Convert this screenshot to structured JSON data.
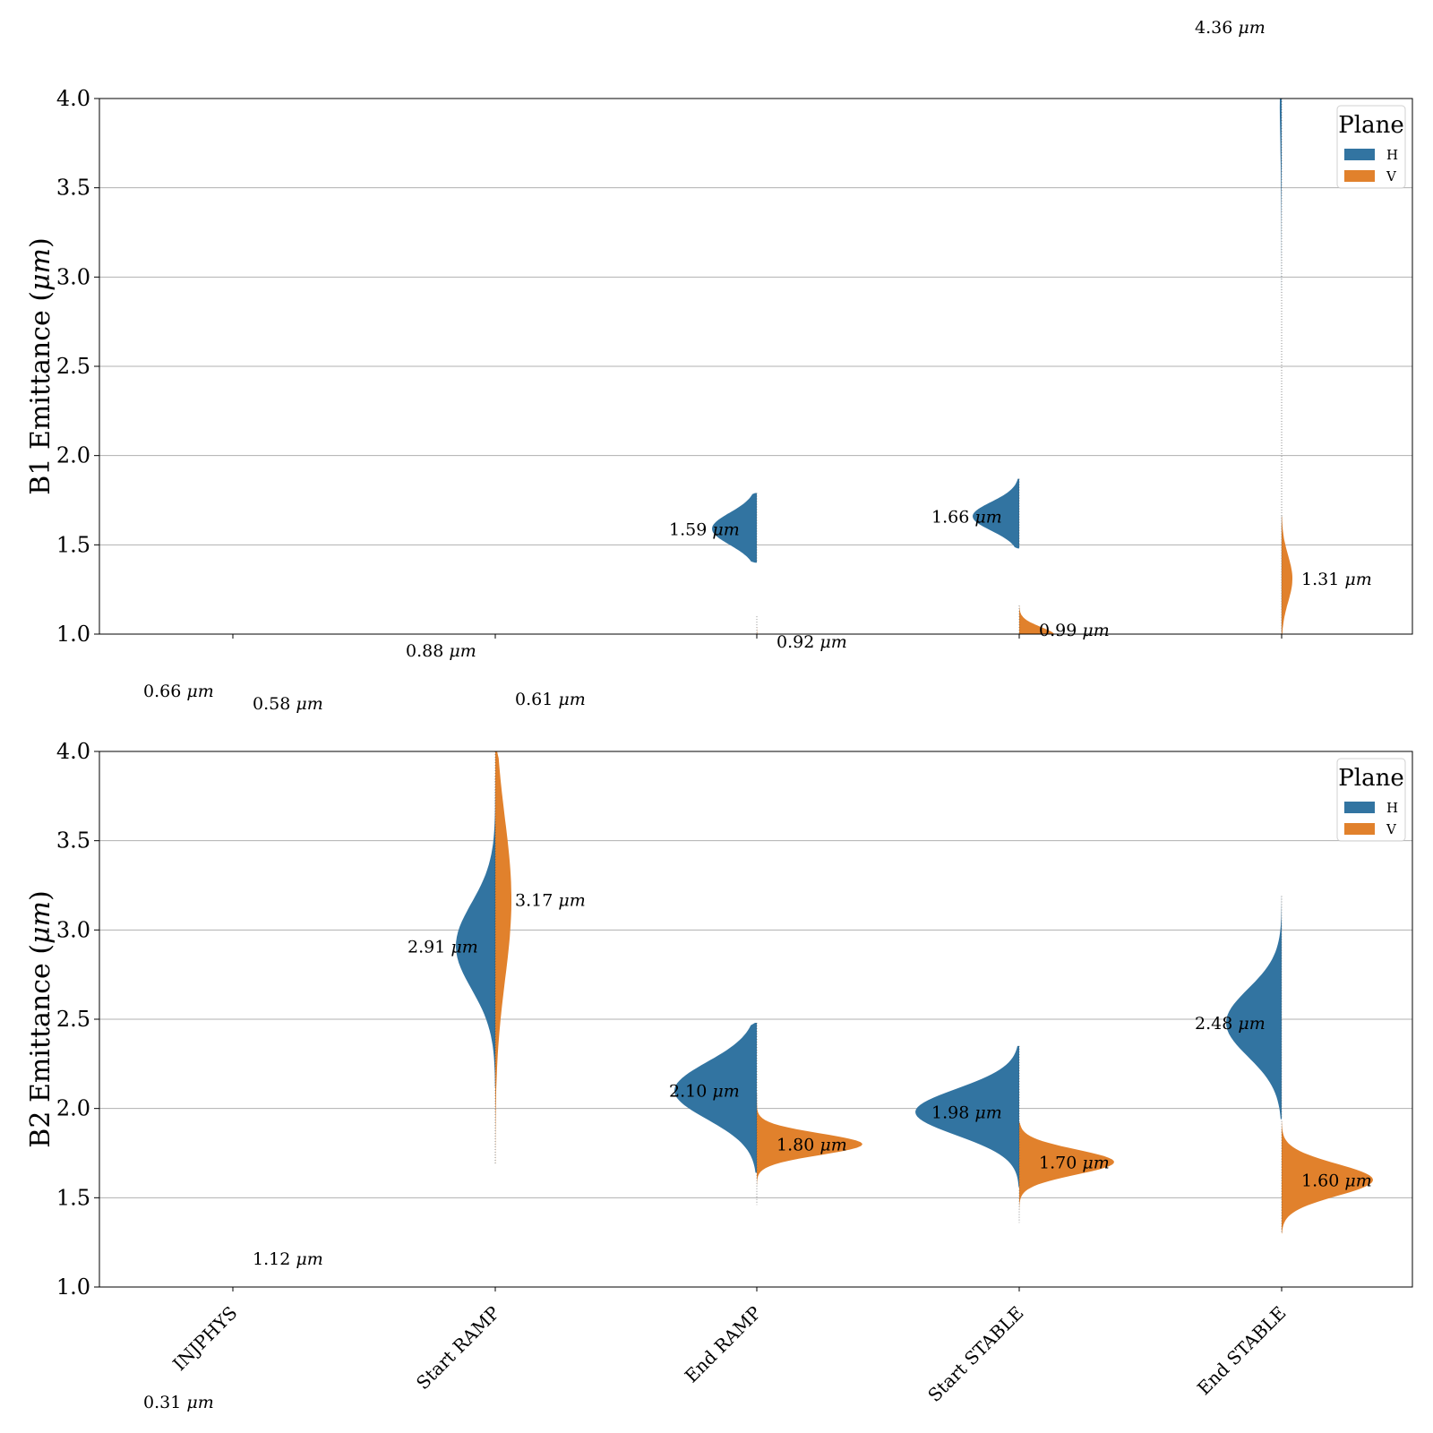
{
  "chart_data": [
    {
      "type": "violin",
      "ylabel": "B1 Emittance ($\\mu m$)",
      "ylim": [
        1.0,
        4.0
      ],
      "yticks": [
        "1.0",
        "1.5",
        "2.0",
        "2.5",
        "3.0",
        "3.5",
        "4.0"
      ],
      "categories": [
        "INJPHYS",
        "Start RAMP",
        "End RAMP",
        "Start STABLE",
        "End STABLE"
      ],
      "show_xticklabels": false,
      "grid": "y",
      "legend": {
        "title": "Plane",
        "placement": "top-right",
        "entries": [
          "H",
          "V"
        ]
      },
      "series": [
        {
          "name": "H",
          "medians": [
            0.66,
            0.88,
            1.59,
            1.66,
            4.36
          ],
          "labels": [
            "0.66 μm",
            "0.88 μm",
            "1.59 μm",
            "1.66 μm",
            "4.36 μm"
          ]
        },
        {
          "name": "V",
          "medians": [
            0.58,
            0.61,
            0.92,
            0.99,
            1.31
          ],
          "labels": [
            "0.58 μm",
            "0.61 μm",
            "0.92 μm",
            "0.99 μm",
            "1.31 μm"
          ]
        }
      ]
    },
    {
      "type": "violin",
      "ylabel": "B2 Emittance ($\\mu m$)",
      "ylim": [
        1.0,
        4.0
      ],
      "yticks": [
        "1.0",
        "1.5",
        "2.0",
        "2.5",
        "3.0",
        "3.5",
        "4.0"
      ],
      "categories": [
        "INJPHYS",
        "Start RAMP",
        "End RAMP",
        "Start STABLE",
        "End STABLE"
      ],
      "show_xticklabels": true,
      "grid": "y",
      "legend": {
        "title": "Plane",
        "placement": "top-right",
        "entries": [
          "H",
          "V"
        ]
      },
      "series": [
        {
          "name": "H",
          "medians": [
            0.31,
            2.91,
            2.1,
            1.98,
            2.48
          ],
          "labels": [
            "0.31 μm",
            "2.91 μm",
            "2.10 μm",
            "1.98 μm",
            "2.48 μm"
          ]
        },
        {
          "name": "V",
          "medians": [
            1.12,
            3.17,
            1.8,
            1.7,
            1.6
          ],
          "labels": [
            "1.12 μm",
            "3.17 μm",
            "1.80 μm",
            "1.70 μm",
            "1.60 μm"
          ]
        }
      ]
    }
  ],
  "colors": {
    "H": "#3274a1",
    "V": "#e1812c",
    "grid": "#b0b0b0"
  }
}
